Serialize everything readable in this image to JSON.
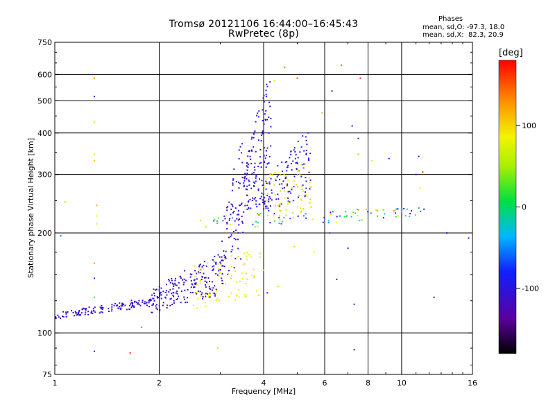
{
  "header": {
    "title_line1": "Tromsø 20121106 16:44:00–16:45:43",
    "title_line2": "RwPretec (8p)",
    "stats_title": "Phases",
    "stats_o": "mean, sd,O: -97.3, 18.0",
    "stats_x": "mean, sd,X:  82.3, 20.9"
  },
  "colorbar": {
    "unit": "deg",
    "ticks": [
      {
        "value": 100,
        "label": "100"
      },
      {
        "value": 0,
        "label": "0"
      },
      {
        "value": -100,
        "label": "-100"
      }
    ],
    "range": [
      -180,
      180
    ]
  },
  "chart_data": {
    "type": "scatter",
    "title": "Tromsø 20121106 16:44:00–16:45:43",
    "subtitle": "RwPretec (8p)",
    "xlabel": "Frequency [MHz]",
    "ylabel": "Stationary phase Virtual Height [km]",
    "xscale": "log",
    "yscale": "log",
    "xlim": [
      1,
      16
    ],
    "ylim": [
      75,
      750
    ],
    "xticks": [
      1,
      2,
      4,
      6,
      8,
      10,
      16
    ],
    "yticks": [
      75,
      100,
      200,
      300,
      400,
      500,
      600,
      750
    ],
    "xgrid": [
      2,
      4,
      6,
      8,
      10
    ],
    "ygrid": [
      100,
      200,
      300,
      400,
      500,
      600
    ],
    "color_label": "deg",
    "color_range": [
      -180,
      180
    ],
    "trace_groups": [
      {
        "name": "",
        "x_range": [
          1.0,
          1.9
        ],
        "height_low": [
          110,
          120
        ],
        "height_high": [
          115,
          128
        ],
        "count": 130,
        "phase": [
          -120,
          -95
        ]
      },
      {
        "name": "",
        "x_range": [
          1.9,
          3.0
        ],
        "height_low": [
          115,
          130
        ],
        "height_high": [
          135,
          175
        ],
        "count": 180,
        "phase": [
          -125,
          -90
        ]
      },
      {
        "name": "",
        "x_range": [
          3.0,
          3.5
        ],
        "height_low": [
          135,
          170
        ],
        "height_high": [
          175,
          420
        ],
        "count": 90,
        "phase": [
          -130,
          -90
        ]
      },
      {
        "name": "",
        "x_range": [
          3.5,
          4.2
        ],
        "height_low": [
          230,
          250
        ],
        "height_high": [
          300,
          620
        ],
        "count": 150,
        "phase": [
          -130,
          -80
        ]
      },
      {
        "name": "",
        "x_range": [
          4.0,
          5.5
        ],
        "height_low": [
          230,
          260
        ],
        "height_high": [
          280,
          420
        ],
        "count": 110,
        "phase": [
          -120,
          -70
        ]
      },
      {
        "name": "",
        "x_range": [
          2.5,
          4.0
        ],
        "height_low": [
          118,
          130
        ],
        "height_high": [
          160,
          180
        ],
        "count": 80,
        "phase": [
          80,
          100
        ]
      },
      {
        "name": "",
        "x_range": [
          4.0,
          5.5
        ],
        "height_low": [
          220,
          230
        ],
        "height_high": [
          300,
          330
        ],
        "count": 70,
        "phase": [
          80,
          110
        ]
      },
      {
        "name": "",
        "x_range": [
          2.5,
          12.0
        ],
        "height_low": [
          200,
          225
        ],
        "height_high": [
          225,
          240
        ],
        "count": 90,
        "phase": [
          -120,
          120
        ]
      }
    ],
    "points": [
      {
        "x": 1.02,
        "y": 113,
        "phase": -100
      },
      {
        "x": 1.04,
        "y": 196,
        "phase": -60
      },
      {
        "x": 1.07,
        "y": 248,
        "phase": 100
      },
      {
        "x": 1.3,
        "y": 585,
        "phase": 130
      },
      {
        "x": 1.3,
        "y": 515,
        "phase": -110
      },
      {
        "x": 1.3,
        "y": 432,
        "phase": 100
      },
      {
        "x": 1.3,
        "y": 345,
        "phase": 90
      },
      {
        "x": 1.3,
        "y": 330,
        "phase": 110
      },
      {
        "x": 1.32,
        "y": 242,
        "phase": 120
      },
      {
        "x": 1.32,
        "y": 225,
        "phase": 90
      },
      {
        "x": 1.32,
        "y": 213,
        "phase": 80
      },
      {
        "x": 1.3,
        "y": 162,
        "phase": 130
      },
      {
        "x": 1.3,
        "y": 146,
        "phase": -110
      },
      {
        "x": 1.3,
        "y": 128,
        "phase": 20
      },
      {
        "x": 1.3,
        "y": 88,
        "phase": -110
      },
      {
        "x": 1.65,
        "y": 87,
        "phase": 170
      },
      {
        "x": 1.78,
        "y": 104,
        "phase": 0
      },
      {
        "x": 2.95,
        "y": 90,
        "phase": 60
      },
      {
        "x": 4.6,
        "y": 630,
        "phase": 140
      },
      {
        "x": 4.3,
        "y": 575,
        "phase": 100
      },
      {
        "x": 5.0,
        "y": 585,
        "phase": 150
      },
      {
        "x": 5.9,
        "y": 460,
        "phase": 110
      },
      {
        "x": 6.3,
        "y": 535,
        "phase": -110
      },
      {
        "x": 6.7,
        "y": 640,
        "phase": 140
      },
      {
        "x": 7.6,
        "y": 585,
        "phase": 170
      },
      {
        "x": 7.2,
        "y": 420,
        "phase": -110
      },
      {
        "x": 7.5,
        "y": 345,
        "phase": 120
      },
      {
        "x": 7.5,
        "y": 385,
        "phase": -100
      },
      {
        "x": 8.2,
        "y": 330,
        "phase": 90
      },
      {
        "x": 9.2,
        "y": 335,
        "phase": -100
      },
      {
        "x": 11.2,
        "y": 340,
        "phase": -90
      },
      {
        "x": 11.5,
        "y": 305,
        "phase": 170
      },
      {
        "x": 11.0,
        "y": 300,
        "phase": -110
      },
      {
        "x": 10.0,
        "y": 232,
        "phase": 130
      },
      {
        "x": 9.5,
        "y": 233,
        "phase": 140
      },
      {
        "x": 11.3,
        "y": 273,
        "phase": 80
      },
      {
        "x": 12.4,
        "y": 128,
        "phase": -110
      },
      {
        "x": 13.5,
        "y": 200,
        "phase": -100
      },
      {
        "x": 15.6,
        "y": 193,
        "phase": -110
      },
      {
        "x": 7.3,
        "y": 89,
        "phase": -120
      },
      {
        "x": 7.3,
        "y": 122,
        "phase": -110
      },
      {
        "x": 6.5,
        "y": 145,
        "phase": -100
      },
      {
        "x": 7.0,
        "y": 180,
        "phase": -110
      },
      {
        "x": 4.9,
        "y": 182,
        "phase": 100
      },
      {
        "x": 4.1,
        "y": 132,
        "phase": -120
      },
      {
        "x": 4.4,
        "y": 138,
        "phase": 100
      },
      {
        "x": 5.6,
        "y": 175,
        "phase": 80
      },
      {
        "x": 6.2,
        "y": 200,
        "phase": -60
      }
    ]
  }
}
